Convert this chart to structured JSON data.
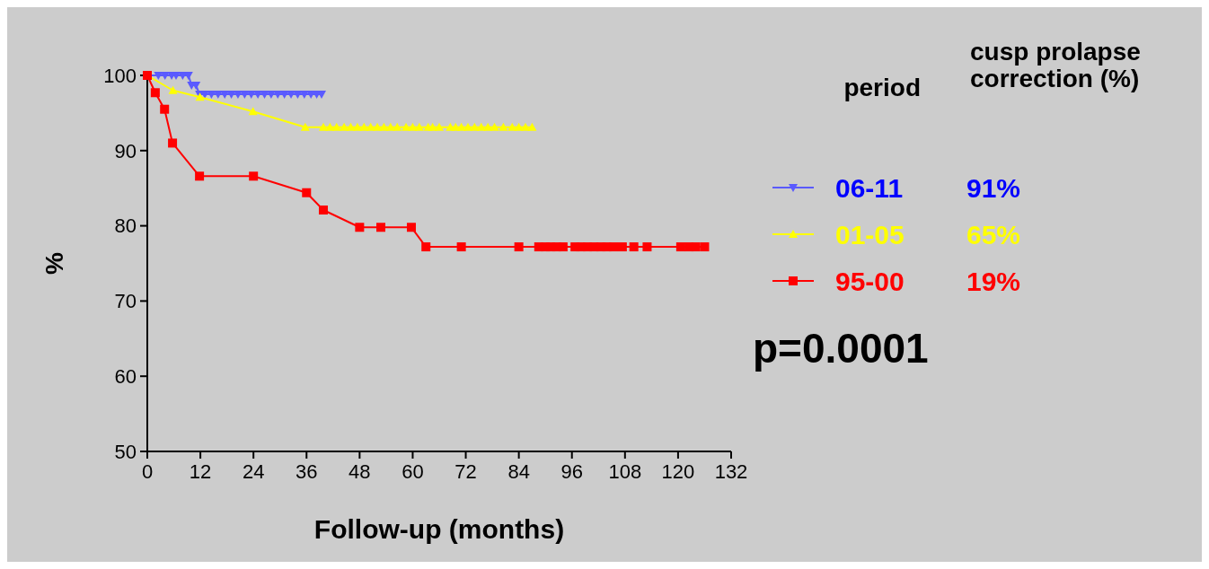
{
  "chart_data": {
    "type": "line",
    "xlabel": "Follow-up (months)",
    "ylabel": "%",
    "xlim": [
      0,
      132
    ],
    "xticks": [
      0,
      12,
      24,
      36,
      48,
      60,
      72,
      84,
      96,
      108,
      120,
      132
    ],
    "ylim": [
      50,
      100
    ],
    "yticks": [
      50,
      60,
      70,
      80,
      90,
      100
    ],
    "grid": false,
    "legend": "right",
    "legend_title": "period",
    "series": [
      {
        "name": "06-11",
        "color": "#5a5aff",
        "marker": "triangle-down",
        "x": [
          0,
          1,
          2.5,
          4,
          5.5,
          6.5,
          8,
          9.3,
          10,
          11,
          11.8,
          13,
          14.5,
          16,
          17.5,
          19,
          20.5,
          22,
          23.5,
          25,
          26.5,
          28,
          29.5,
          31,
          32.5,
          34,
          35.5,
          37,
          38.3,
          39.4
        ],
        "values": [
          100,
          null,
          100,
          100,
          100,
          100,
          100,
          100,
          98.7,
          98.7,
          97.5,
          97.5,
          97.5,
          97.5,
          97.5,
          97.5,
          97.5,
          97.5,
          97.5,
          97.5,
          97.5,
          97.5,
          97.5,
          97.5,
          97.5,
          97.5,
          97.5,
          97.5,
          97.5,
          97.5
        ]
      },
      {
        "name": "01-05",
        "color": "#ffff00",
        "marker": "triangle",
        "x": [
          0,
          5.8,
          11.9,
          23.9,
          35.7,
          39.8,
          41.3,
          42.8,
          44.5,
          46,
          47.5,
          49,
          50.5,
          52,
          53.5,
          55,
          56.5,
          58.5,
          60,
          61.5,
          63.5,
          64.5,
          66,
          68.5,
          69.7,
          71,
          72.5,
          74,
          75.5,
          77,
          78.5,
          80.5,
          82.5,
          84,
          85.5,
          87
        ],
        "values": [
          100,
          98,
          97.1,
          95.2,
          93.1,
          93.1,
          93.1,
          93.1,
          93.1,
          93.1,
          93.1,
          93.1,
          93.1,
          93.1,
          93.1,
          93.1,
          93.1,
          93.1,
          93.1,
          93.1,
          93.1,
          93.1,
          93.1,
          93.1,
          93.1,
          93.1,
          93.1,
          93.1,
          93.1,
          93.1,
          93.1,
          93.1,
          93.1,
          93.1,
          93.1,
          93.1
        ]
      },
      {
        "name": "95-00",
        "color": "#ff0000",
        "marker": "square",
        "x": [
          0,
          1.8,
          3.9,
          5.7,
          11.8,
          24,
          36,
          39.8,
          48,
          52.8,
          59.7,
          63,
          71,
          84,
          88.5,
          90,
          91.2,
          92.6,
          94,
          96.7,
          98,
          99.5,
          101,
          102.5,
          103.9,
          105.4,
          107.4,
          110,
          113,
          120.6,
          122.5,
          124,
          126
        ],
        "values": [
          100,
          97.7,
          95.5,
          91,
          86.6,
          86.6,
          84.4,
          82.1,
          79.8,
          79.8,
          79.8,
          77.2,
          77.2,
          77.2,
          77.2,
          77.2,
          77.2,
          77.2,
          77.2,
          77.2,
          77.2,
          77.2,
          77.2,
          77.2,
          77.2,
          77.2,
          77.2,
          77.2,
          77.2,
          77.2,
          77.2,
          77.2,
          77.2
        ]
      }
    ],
    "annotations": [
      "cusp prolapse correction (%)",
      "91%",
      "65%",
      "19%",
      "p=0.0001"
    ]
  }
}
